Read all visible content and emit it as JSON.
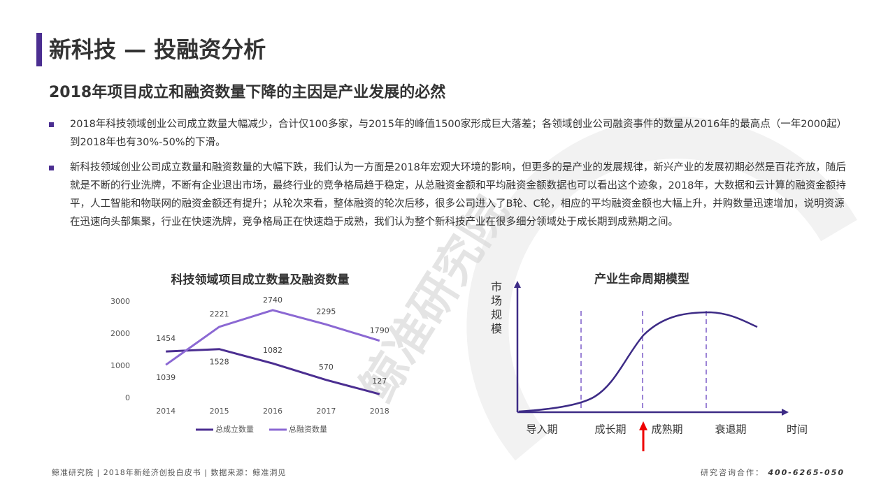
{
  "header": {
    "title": "新科技 — 投融资分析",
    "subtitle": "2018年项目成立和融资数量下降的主因是产业发展的必然"
  },
  "bullets": [
    "2018年科技领域创业公司成立数量大幅减少，合计仅100多家，与2015年的峰值1500家形成巨大落差；各领域创业公司融资事件的数量从2016年的最高点（一年2000起）到2018年也有30%-50%的下滑。",
    "新科技领域创业公司成立数量和融资数量的大幅下跌，我们认为一方面是2018年宏观大环境的影响，但更多的是产业的发展规律，新兴产业的发展初期必然是百花齐放，随后就是不断的行业洗牌，不断有企业退出市场，最终行业的竞争格局趋于稳定，从总融资金额和平均融资金额数据也可以看出这个迹象，2018年，大数据和云计算的融资金额持平，人工智能和物联网的融资金额还有提升；从轮次来看，整体融资的轮次后移，很多公司进入了B轮、C轮，相应的平均融资金额也大幅上升，并购数量迅速增加，说明资源在迅速向头部集聚，行业在快速洗牌，竞争格局正在快速趋于成熟，我们认为整个新科技产业在很多细分领域处于成长期到成熟期之间。"
  ],
  "chart_data": {
    "type": "line",
    "title": "科技领域项目成立数量及融资数量",
    "categories": [
      "2014",
      "2015",
      "2016",
      "2017",
      "2018"
    ],
    "series": [
      {
        "name": "总成立数量",
        "color": "#4b2e91",
        "values": [
          1454,
          1528,
          1082,
          570,
          127
        ]
      },
      {
        "name": "总融资数量",
        "color": "#8b68d3",
        "values": [
          1039,
          2221,
          2740,
          2295,
          1790
        ]
      }
    ],
    "ylim": [
      0,
      3000
    ],
    "yticks": [
      0,
      1000,
      2000,
      3000
    ],
    "grid": false,
    "legend": "bottom"
  },
  "diagram": {
    "title": "产业生命周期模型",
    "y_label": "市场规模",
    "x_label": "时间",
    "stages": [
      "导入期",
      "成长期",
      "成熟期",
      "衰退期"
    ]
  },
  "watermark": "鲸准研究院",
  "footer": {
    "source": "鲸准研究院 | 2018年新经济创投白皮书 | 数据来源：鲸准洞见",
    "contact_label": "研究咨询合作：",
    "phone": "400-6265-050"
  }
}
